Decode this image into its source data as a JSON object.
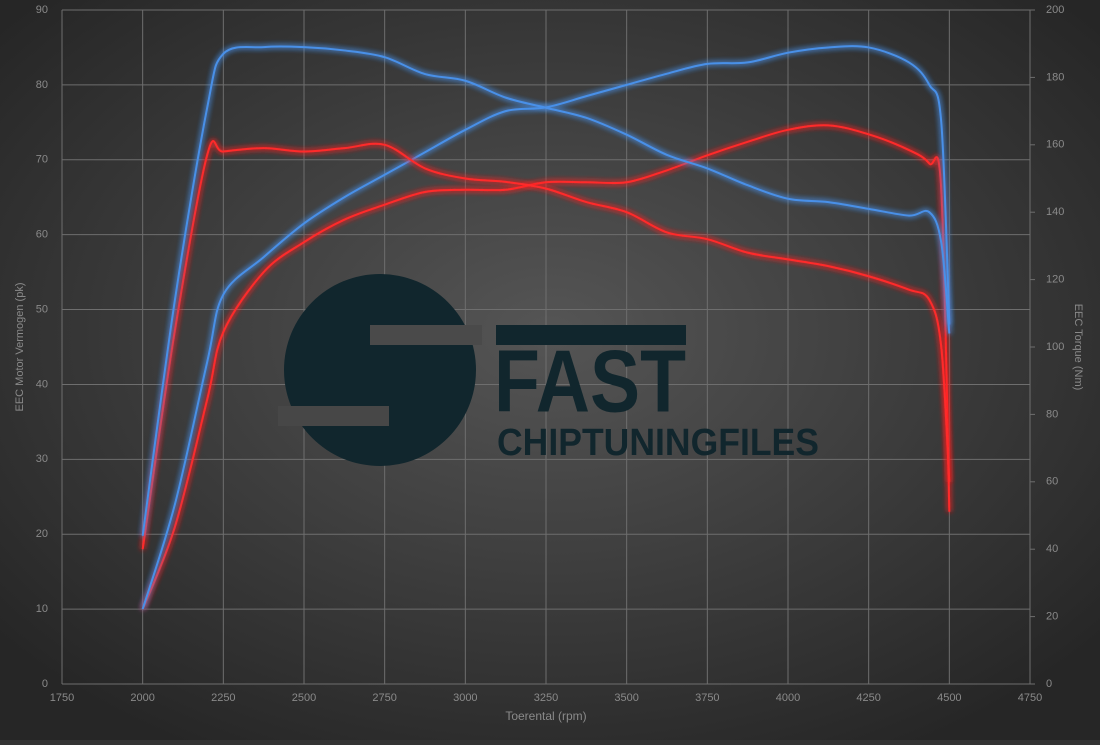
{
  "chart_data": {
    "type": "line",
    "x_label": "Toerental (rpm)",
    "y_label": "EEC Motor Vermogen (pk)",
    "y2_label": "EEC Torque (Nm)",
    "x": [
      2000,
      2100,
      2200,
      2250,
      2375,
      2500,
      2625,
      2750,
      2875,
      3000,
      3125,
      3250,
      3375,
      3500,
      3625,
      3750,
      3875,
      4000,
      4125,
      4250,
      4375,
      4438,
      4475,
      4500
    ],
    "series": [
      {
        "color": "#ff2a2a",
        "axis": "y",
        "values": [
          10,
          21,
          38,
          47,
          55,
          59,
          62,
          64,
          65.7,
          66,
          66,
          67,
          67,
          67,
          68.6,
          70.6,
          72.4,
          74,
          74.6,
          73.4,
          71.3,
          69.5,
          66,
          23
        ]
      },
      {
        "color": "#4a90e8",
        "axis": "y",
        "values": [
          10,
          24,
          43,
          52,
          57,
          61.5,
          65,
          68,
          71,
          74,
          76.5,
          77,
          78.5,
          80,
          81.5,
          82.8,
          83,
          84.3,
          85,
          85,
          83,
          80,
          75,
          48
        ]
      },
      {
        "color": "#ff2a2a",
        "axis": "y2",
        "values": [
          40,
          105,
          157,
          158,
          159,
          158,
          159,
          160,
          153,
          150,
          149,
          147,
          143,
          140,
          134,
          132,
          128,
          126,
          124,
          121,
          117,
          114,
          100,
          60
        ]
      },
      {
        "color": "#4a90e8",
        "axis": "y2",
        "values": [
          44,
          114,
          171,
          187,
          189,
          189,
          188,
          186,
          181,
          179,
          174,
          171,
          168,
          163,
          157,
          153,
          148,
          144,
          143,
          141,
          139,
          140,
          131,
          104
        ]
      }
    ],
    "xlim": [
      1750,
      4750
    ],
    "xticks": [
      1750,
      2000,
      2250,
      2500,
      2750,
      3000,
      3250,
      3500,
      3750,
      4000,
      4250,
      4500,
      4750
    ],
    "ylim": [
      0,
      90
    ],
    "yticks": [
      0,
      10,
      20,
      30,
      40,
      50,
      60,
      70,
      80,
      90
    ],
    "y2lim": [
      0,
      200
    ],
    "y2ticks": [
      0,
      20,
      40,
      60,
      80,
      100,
      120,
      140,
      160,
      180,
      200
    ],
    "grid": true
  },
  "logo": {
    "line1": "FAST",
    "line2": "CHIPTUNINGFILES"
  }
}
